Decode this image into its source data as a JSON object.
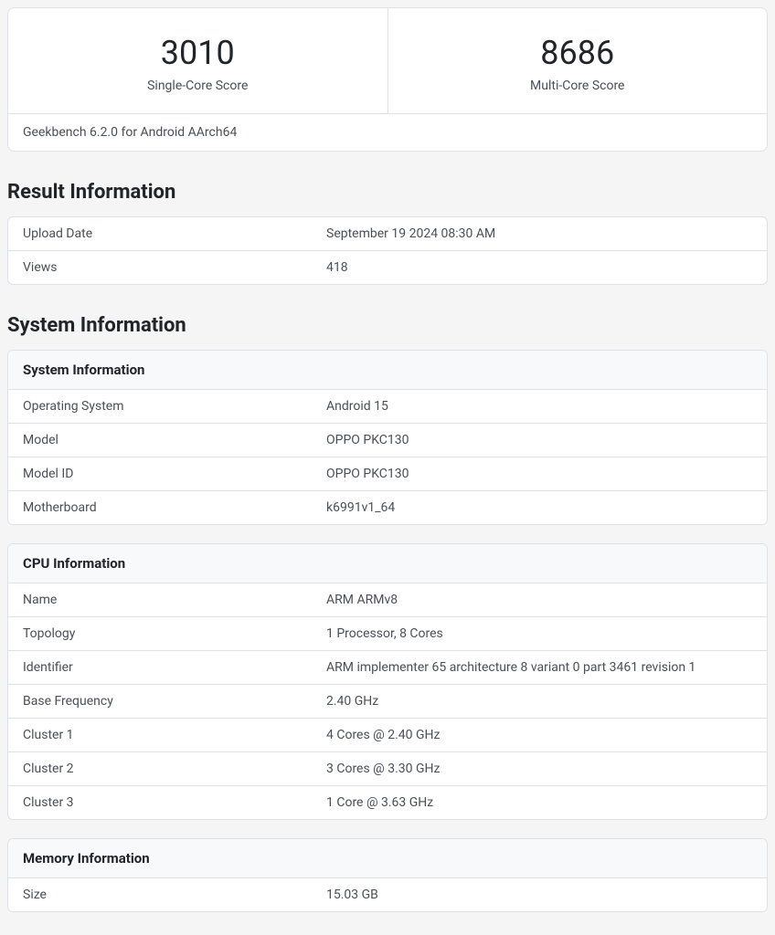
{
  "scores": {
    "single_core": {
      "value": "3010",
      "label": "Single-Core Score"
    },
    "multi_core": {
      "value": "8686",
      "label": "Multi-Core Score"
    },
    "version": "Geekbench 6.2.0 for Android AArch64"
  },
  "result_info": {
    "title": "Result Information",
    "rows": [
      {
        "key": "Upload Date",
        "value": "September 19 2024 08:30 AM"
      },
      {
        "key": "Views",
        "value": "418"
      }
    ]
  },
  "system_info": {
    "title": "System Information",
    "sections": [
      {
        "header": "System Information",
        "rows": [
          {
            "key": "Operating System",
            "value": "Android 15"
          },
          {
            "key": "Model",
            "value": "OPPO PKC130"
          },
          {
            "key": "Model ID",
            "value": "OPPO PKC130"
          },
          {
            "key": "Motherboard",
            "value": "k6991v1_64"
          }
        ]
      },
      {
        "header": "CPU Information",
        "rows": [
          {
            "key": "Name",
            "value": "ARM ARMv8"
          },
          {
            "key": "Topology",
            "value": "1 Processor, 8 Cores"
          },
          {
            "key": "Identifier",
            "value": "ARM implementer 65 architecture 8 variant 0 part 3461 revision 1"
          },
          {
            "key": "Base Frequency",
            "value": "2.40 GHz"
          },
          {
            "key": "Cluster 1",
            "value": "4 Cores @ 2.40 GHz"
          },
          {
            "key": "Cluster 2",
            "value": "3 Cores @ 3.30 GHz"
          },
          {
            "key": "Cluster 3",
            "value": "1 Core @ 3.63 GHz"
          }
        ]
      },
      {
        "header": "Memory Information",
        "rows": [
          {
            "key": "Size",
            "value": "15.03 GB"
          }
        ]
      }
    ]
  }
}
